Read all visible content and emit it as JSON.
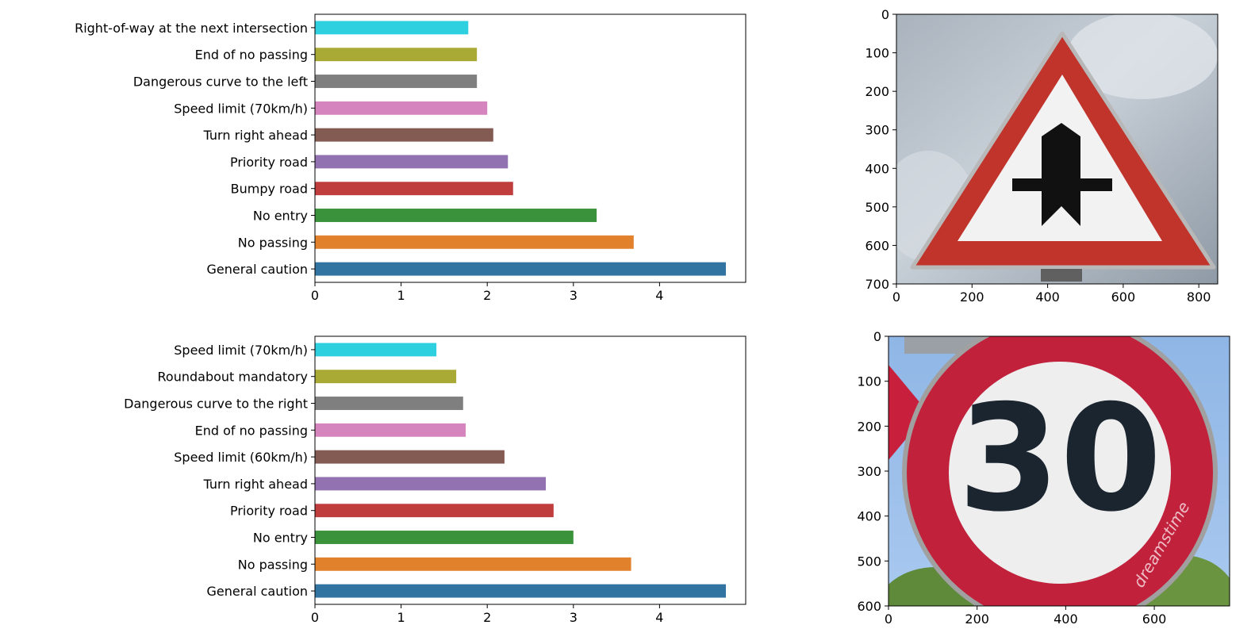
{
  "chart_data": [
    {
      "type": "bar",
      "orientation": "horizontal",
      "categories": [
        "General caution",
        "No passing",
        "No entry",
        "Bumpy road",
        "Priority road",
        "Turn right ahead",
        "Speed limit (70km/h)",
        "Dangerous curve to the left",
        "End of no passing",
        "Right-of-way at the next intersection"
      ],
      "values": [
        4.77,
        3.7,
        3.27,
        2.3,
        2.24,
        2.07,
        2.0,
        1.88,
        1.88,
        1.78
      ],
      "xlim": [
        0,
        5.0
      ],
      "xticks": [
        "0",
        "1",
        "2",
        "3",
        "4"
      ],
      "xtick_values": [
        0,
        1,
        2,
        3,
        4
      ],
      "grid": false,
      "legend": "none"
    },
    {
      "type": "bar",
      "orientation": "horizontal",
      "categories": [
        "General caution",
        "No passing",
        "No entry",
        "Priority road",
        "Turn right ahead",
        "Speed limit (60km/h)",
        "End of no passing",
        "Dangerous curve to the right",
        "Roundabout mandatory",
        "Speed limit (70km/h)"
      ],
      "values": [
        4.77,
        3.67,
        3.0,
        2.77,
        2.68,
        2.2,
        1.75,
        1.72,
        1.64,
        1.41
      ],
      "xlim": [
        0,
        5.0
      ],
      "xticks": [
        "0",
        "1",
        "2",
        "3",
        "4"
      ],
      "xtick_values": [
        0,
        1,
        2,
        3,
        4
      ],
      "grid": false,
      "legend": "none"
    }
  ],
  "bar_colors": [
    "#3274a1",
    "#e1812c",
    "#3a923a",
    "#c03d3e",
    "#9372b2",
    "#845b53",
    "#d684bd",
    "#7f7f7f",
    "#a9aa35",
    "#2ed0e0"
  ],
  "images": [
    {
      "description_icon": "priority-road-warning-sign-icon",
      "x_range": [
        0,
        850
      ],
      "y_range": [
        0,
        700
      ],
      "xticks": [
        "0",
        "200",
        "400",
        "600",
        "800"
      ],
      "xtick_values": [
        0,
        200,
        400,
        600,
        800
      ],
      "yticks": [
        "0",
        "100",
        "200",
        "300",
        "400",
        "500",
        "600",
        "700"
      ],
      "ytick_values": [
        0,
        100,
        200,
        300,
        400,
        500,
        600,
        700
      ]
    },
    {
      "description_icon": "speed-limit-30-sign-icon",
      "watermark_text": "dreamstime",
      "x_range": [
        0,
        770
      ],
      "y_range": [
        0,
        600
      ],
      "xticks": [
        "0",
        "200",
        "400",
        "600"
      ],
      "xtick_values": [
        0,
        200,
        400,
        600
      ],
      "yticks": [
        "0",
        "100",
        "200",
        "300",
        "400",
        "500",
        "600"
      ],
      "ytick_values": [
        0,
        100,
        200,
        300,
        400,
        500,
        600
      ],
      "sign_text": "30"
    }
  ]
}
